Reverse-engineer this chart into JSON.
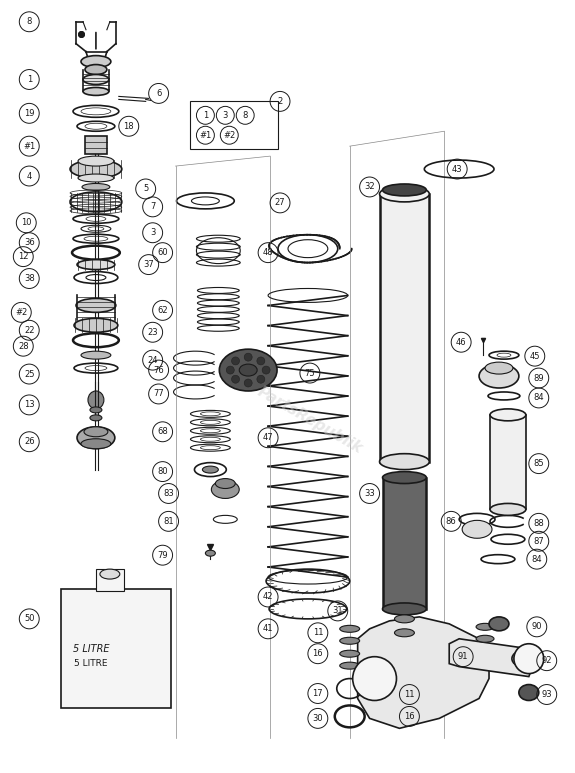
{
  "bg_color": "#ffffff",
  "line_color": "#1a1a1a",
  "watermark": "PartsRepublik",
  "fig_width": 5.75,
  "fig_height": 7.73
}
